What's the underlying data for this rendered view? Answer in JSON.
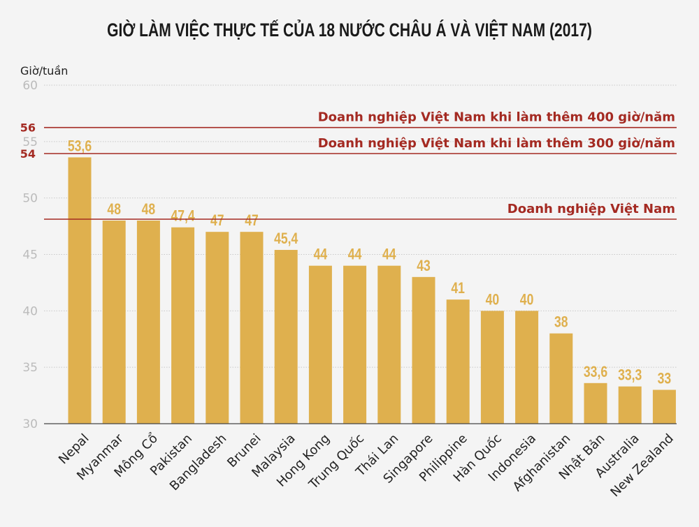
{
  "chart_data": {
    "type": "bar",
    "title": "GIỜ LÀM VIỆC THỰC TẾ CỦA 18 NƯỚC CHÂU Á VÀ VIỆT NAM (2017)",
    "ylabel": "Giờ/tuần",
    "xlabel": "",
    "ylim": [
      30,
      60
    ],
    "yticks": [
      30,
      35,
      40,
      45,
      50,
      55,
      60
    ],
    "grid": true,
    "categories": [
      "Nepal",
      "Myanmar",
      "Mông Cổ",
      "Pakistan",
      "Bangladesh",
      "Brunei",
      "Malaysia",
      "Hong Kong",
      "Trung Quốc",
      "Thái Lan",
      "Singapore",
      "Philippine",
      "Hàn Quốc",
      "Indonesia",
      "Afghanistan",
      "Nhật Bản",
      "Australia",
      "New Zealand"
    ],
    "values": [
      53.6,
      48,
      48,
      47.4,
      47,
      47,
      45.4,
      44,
      44,
      44,
      43,
      41,
      40,
      40,
      38,
      33.6,
      33.3,
      33
    ],
    "data_labels": [
      "53,6",
      "48",
      "48",
      "47,4",
      "47",
      "47",
      "45,4",
      "44",
      "44",
      "44",
      "43",
      "41",
      "40",
      "40",
      "38",
      "33,6",
      "33,3",
      "33"
    ],
    "reference_lines": [
      {
        "value": 56,
        "tick_label": "56",
        "label": "Doanh nghiệp Việt Nam khi làm thêm 400 giờ/năm"
      },
      {
        "value": 54,
        "tick_label": "54",
        "label": "Doanh nghiệp Việt Nam khi làm thêm 300 giờ/năm"
      },
      {
        "value": 48,
        "tick_label": "",
        "label": "Doanh nghiệp Việt Nam"
      }
    ],
    "colors": {
      "bar": "#dfb04e",
      "data_label": "#dfb04e",
      "reference": "#a42a22",
      "tick": "#bbbbbb"
    }
  }
}
